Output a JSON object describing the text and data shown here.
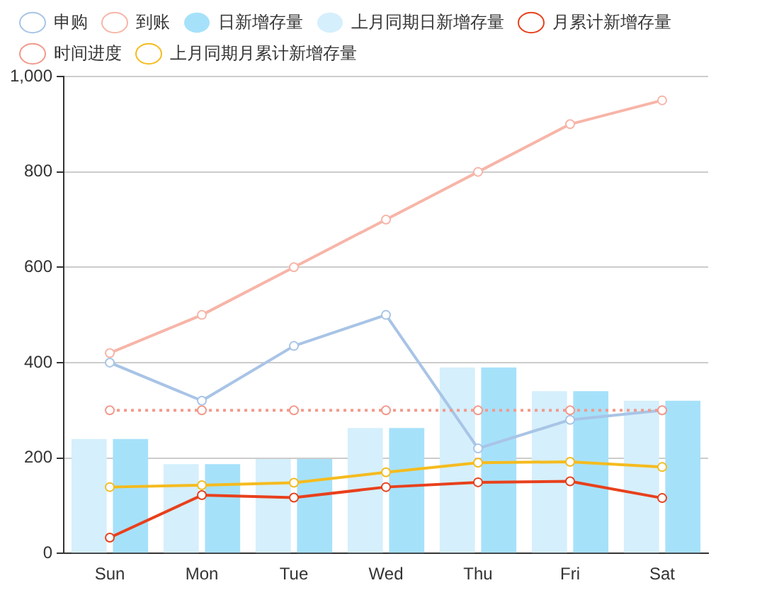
{
  "chart_data": {
    "type": "line",
    "categories": [
      "Sun",
      "Mon",
      "Tue",
      "Wed",
      "Thu",
      "Fri",
      "Sat"
    ],
    "series": [
      {
        "name": "申购",
        "color": "#a8c4e6",
        "values": [
          400,
          320,
          435,
          500,
          220,
          280,
          300
        ]
      },
      {
        "name": "到账",
        "color": "#f7b5a8",
        "values": [
          420,
          500,
          600,
          700,
          800,
          900,
          950
        ]
      },
      {
        "name": "日新增存量",
        "type": "bar",
        "color": "#a6e1fa",
        "values": [
          240,
          187,
          198,
          263,
          390,
          340,
          320
        ]
      },
      {
        "name": "上月同期日新增存量",
        "type": "bar",
        "color": "#d5effc",
        "values": [
          240,
          187,
          198,
          263,
          390,
          340,
          320
        ]
      },
      {
        "name": "月累计新增存量",
        "color": "#e8401c",
        "values": [
          33,
          122,
          117,
          139,
          149,
          151,
          116
        ]
      },
      {
        "name": "时间进度",
        "color": "#f29a8c",
        "line_style": "dotted",
        "values": [
          300,
          300,
          300,
          300,
          300,
          300,
          300
        ]
      },
      {
        "name": "上月同期月累计新增存量",
        "color": "#f5bb1e",
        "values": [
          139,
          143,
          148,
          170,
          190,
          192,
          181
        ]
      }
    ],
    "ylim": [
      0,
      1000
    ],
    "yticks": [
      0,
      200,
      400,
      600,
      800,
      {
        "value": 1000,
        "label": "1,000"
      }
    ],
    "grid": "y",
    "legend": "top",
    "marker": "circle",
    "line_style": "solid"
  }
}
